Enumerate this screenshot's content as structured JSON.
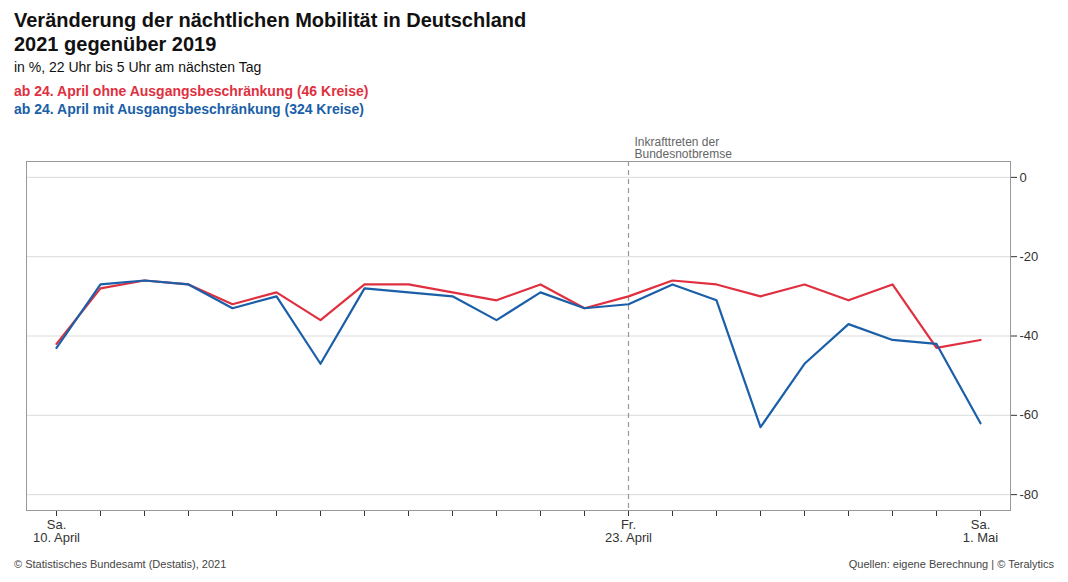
{
  "chart_data": {
    "type": "line",
    "title": "Veränderung der nächtlichen Mobilität in Deutschland\n2021 gegenüber 2019",
    "subtitle": "in %, 22 Uhr bis 5 Uhr am nächsten Tag",
    "categories": [
      "Sa.\n10. April",
      null,
      null,
      null,
      null,
      null,
      null,
      null,
      null,
      null,
      null,
      null,
      null,
      "Fr.\n23. April",
      null,
      null,
      null,
      null,
      null,
      null,
      null,
      "Sa.\n1. Mai"
    ],
    "series": [
      {
        "name": "ab 24. April ohne Ausgangsbeschränkung (46 Kreise)",
        "color": "#e03040",
        "values": [
          -42,
          -28,
          -26,
          -27,
          -32,
          -29,
          -36,
          -27,
          -27,
          -29,
          -31,
          -27,
          -33,
          -30,
          -26,
          -27,
          -30,
          -27,
          -31,
          -27,
          -43,
          -41
        ]
      },
      {
        "name": "ab 24. April mit Ausgangsbeschränkung (324 Kreise)",
        "color": "#1a5fa8",
        "values": [
          -43,
          -27,
          -26,
          -27,
          -33,
          -30,
          -47,
          -28,
          -29,
          -30,
          -36,
          -29,
          -33,
          -32,
          -27,
          -31,
          -63,
          -47,
          -37,
          -41,
          -42,
          -62
        ]
      }
    ],
    "ylim": [
      -84,
      4
    ],
    "yticks": [
      0,
      -20,
      -40,
      -60,
      -80
    ],
    "grid": true,
    "legend": "top-left",
    "annotations": [
      {
        "text": "Inkrafttreten der\nBundesnotbremse",
        "x": "Fr.\n23. April"
      }
    ],
    "source": [
      "© Statistisches Bundesamt (Destatis), 2021",
      "Quellen: eigene Berechnung | © Teralytics"
    ]
  }
}
